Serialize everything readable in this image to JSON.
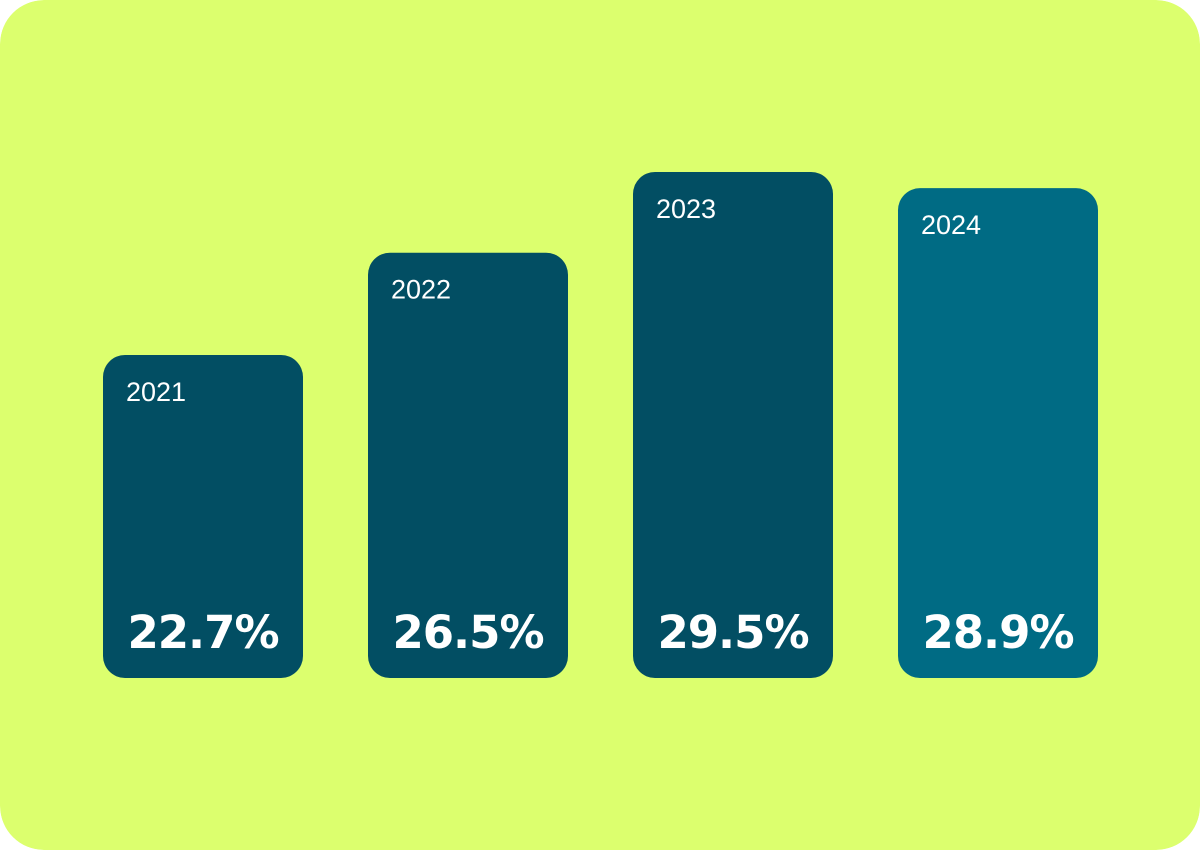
{
  "colors": {
    "background": "#dcff6e",
    "bar": "#024e63",
    "bar_highlight": "#006b84",
    "text": "#ffffff"
  },
  "chart_data": {
    "type": "bar",
    "categories": [
      "2021",
      "2022",
      "2023",
      "2024"
    ],
    "values": [
      22.7,
      26.5,
      29.5,
      28.9
    ],
    "value_labels": [
      "22.7%",
      "26.5%",
      "29.5%",
      "28.9%"
    ],
    "highlighted_category": "2024",
    "title": "",
    "xlabel": "",
    "ylabel": "",
    "grid": false,
    "legend": "none"
  }
}
